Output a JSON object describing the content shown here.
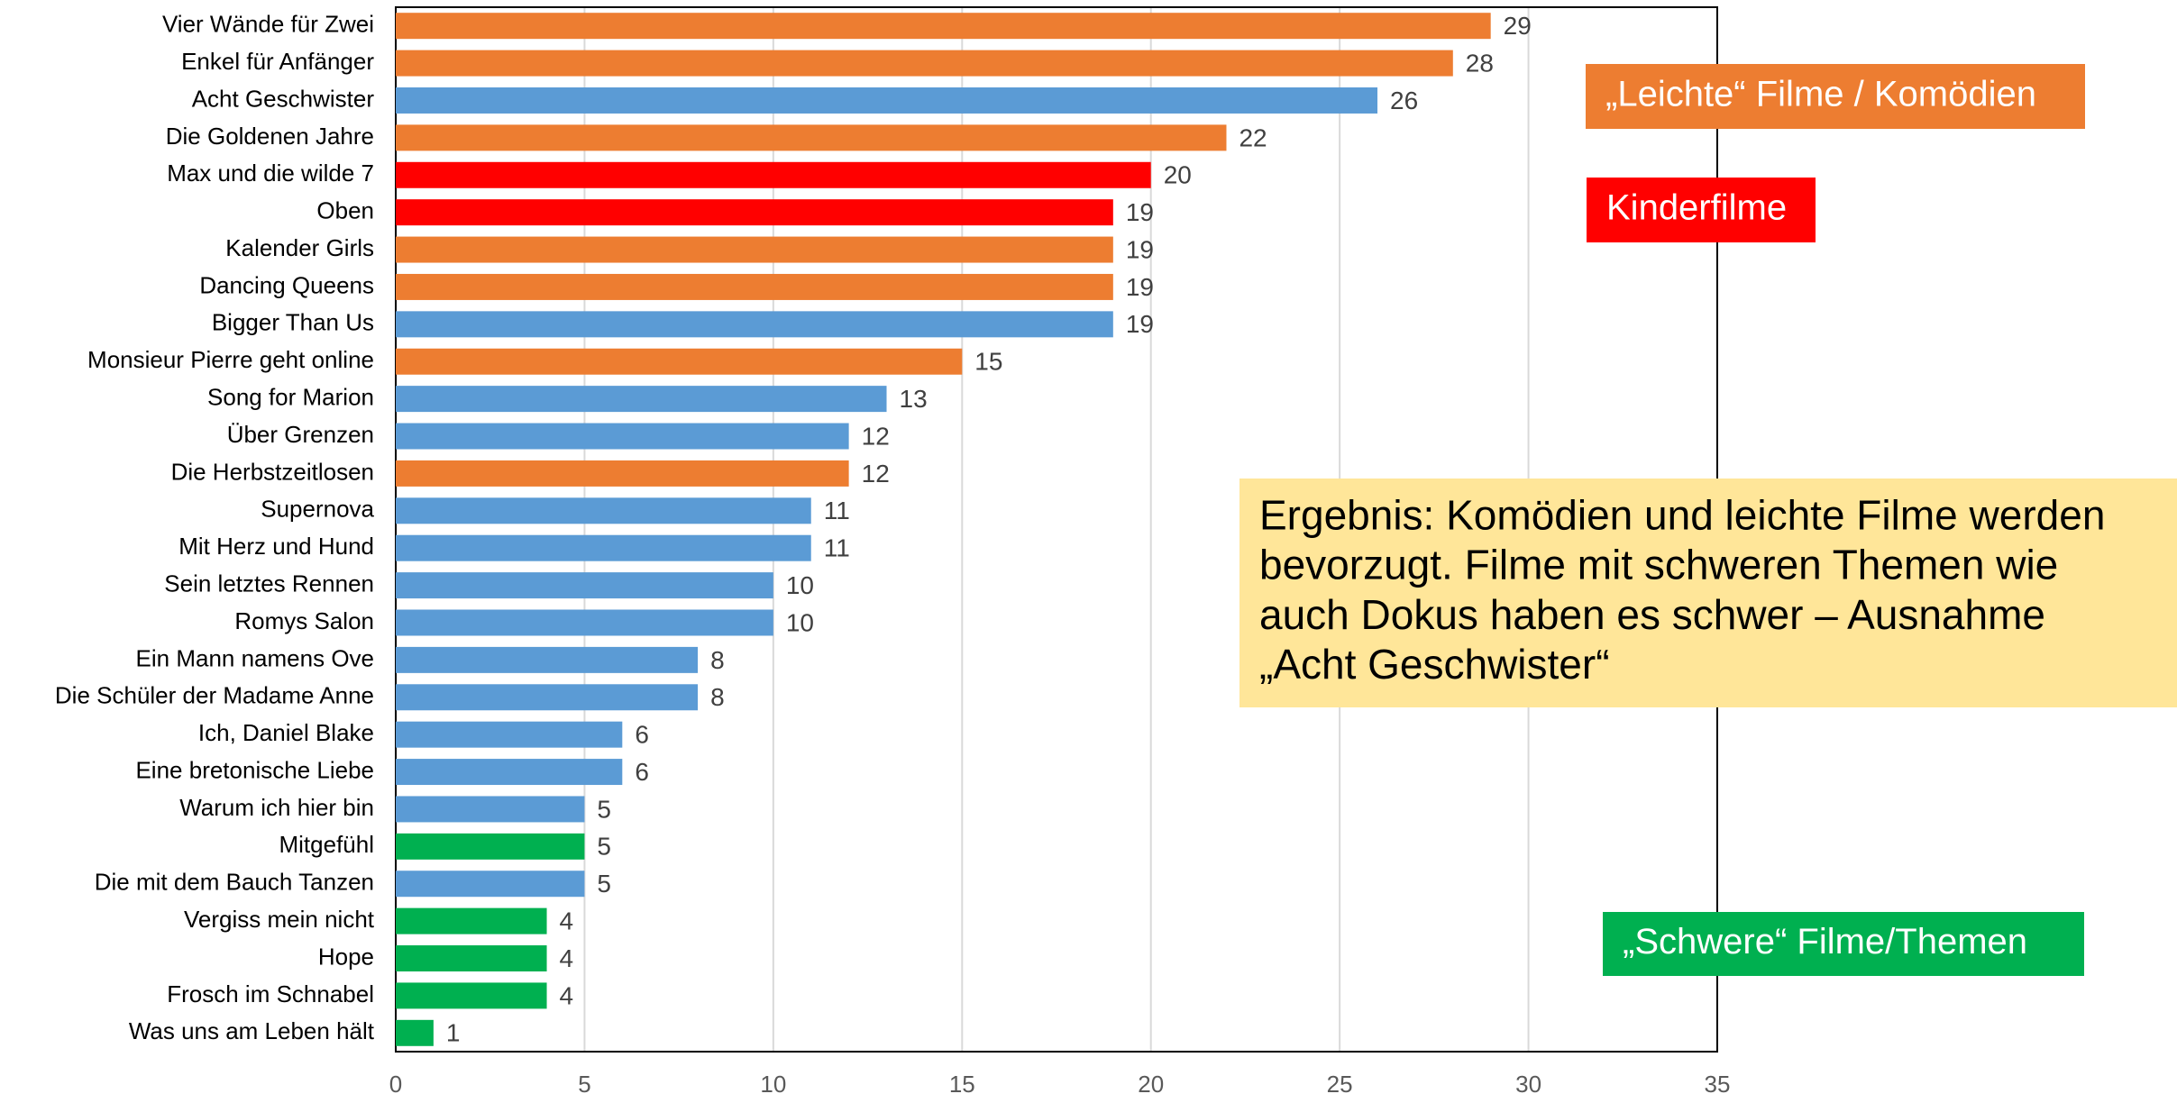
{
  "chart_data": {
    "type": "barh",
    "categories": [
      "Vier Wände für Zwei",
      "Enkel für Anfänger",
      "Acht Geschwister",
      "Die Goldenen Jahre",
      "Max und die wilde 7",
      "Oben",
      "Kalender Girls",
      "Dancing Queens",
      "Bigger Than Us",
      "Monsieur Pierre geht online",
      "Song for Marion",
      "Über Grenzen",
      "Die Herbstzeitlosen",
      "Supernova",
      "Mit Herz und Hund",
      "Sein letztes Rennen",
      "Romys Salon",
      "Ein Mann namens Ove",
      "Die Schüler der Madame Anne",
      "Ich, Daniel Blake",
      "Eine bretonische Liebe",
      "Warum ich hier bin",
      "Mitgefühl",
      "Die mit dem Bauch Tanzen",
      "Vergiss mein nicht",
      "Hope",
      "Frosch im Schnabel",
      "Was uns am Leben hält"
    ],
    "values": [
      29,
      28,
      26,
      22,
      20,
      19,
      19,
      19,
      19,
      15,
      13,
      12,
      12,
      11,
      11,
      10,
      10,
      8,
      8,
      6,
      6,
      5,
      5,
      5,
      4,
      4,
      4,
      1
    ],
    "colors": [
      "#ed7d31",
      "#ed7d31",
      "#5b9bd5",
      "#ed7d31",
      "#ff0000",
      "#ff0000",
      "#ed7d31",
      "#ed7d31",
      "#5b9bd5",
      "#ed7d31",
      "#5b9bd5",
      "#5b9bd5",
      "#ed7d31",
      "#5b9bd5",
      "#5b9bd5",
      "#5b9bd5",
      "#5b9bd5",
      "#5b9bd5",
      "#5b9bd5",
      "#5b9bd5",
      "#5b9bd5",
      "#5b9bd5",
      "#00b050",
      "#5b9bd5",
      "#00b050",
      "#00b050",
      "#00b050",
      "#00b050"
    ],
    "xlim": [
      0,
      35
    ],
    "xticks": [
      0,
      5,
      10,
      15,
      20,
      25,
      30,
      35
    ],
    "grid": true,
    "annotations": [
      {
        "lines": [
          "„Leichte“ Filme / Komödien"
        ],
        "color": "#ed7d31"
      },
      {
        "lines": [
          "Kinderfilme"
        ],
        "color": "#ff0000"
      },
      {
        "lines": [
          "Ergebnis: Komödien und leichte Filme werden",
          "bevorzugt. Filme mit schweren Themen wie",
          "auch Dokus haben es schwer – Ausnahme",
          "„Acht Geschwister“"
        ],
        "color": "#ffe699"
      },
      {
        "lines": [
          "„Schwere“ Filme/Themen"
        ],
        "color": "#00b050"
      }
    ]
  }
}
